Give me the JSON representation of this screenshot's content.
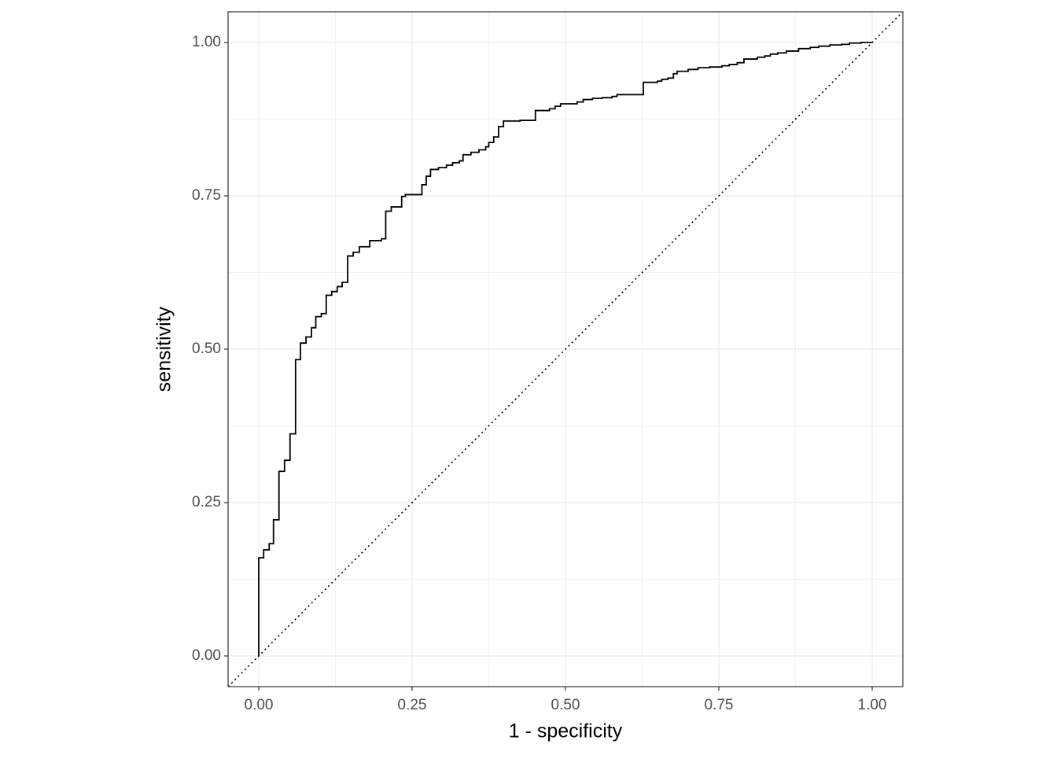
{
  "chart_data": {
    "type": "line",
    "step": "hv",
    "x_label": "1 - specificity",
    "y_label": "sensitivity",
    "x": [
      0,
      0,
      0.008,
      0.017,
      0.024,
      0.033,
      0.042,
      0.051,
      0.06,
      0.068,
      0.077,
      0.086,
      0.093,
      0.102,
      0.11,
      0.119,
      0.128,
      0.136,
      0.145,
      0.154,
      0.164,
      0.181,
      0.2,
      0.207,
      0.216,
      0.233,
      0.239,
      0.266,
      0.273,
      0.28,
      0.293,
      0.306,
      0.316,
      0.327,
      0.333,
      0.346,
      0.359,
      0.37,
      0.375,
      0.383,
      0.391,
      0.399,
      0.426,
      0.451,
      0.474,
      0.483,
      0.492,
      0.519,
      0.529,
      0.544,
      0.56,
      0.576,
      0.584,
      0.627,
      0.65,
      0.657,
      0.667,
      0.676,
      0.682,
      0.7,
      0.716,
      0.735,
      0.755,
      0.767,
      0.78,
      0.791,
      0.813,
      0.825,
      0.834,
      0.846,
      0.86,
      0.88,
      0.899,
      0.913,
      0.931,
      0.95,
      0.963,
      0.982,
      1
    ],
    "series": [
      {
        "color": "#000000",
        "values": [
          0,
          0.16,
          0.173,
          0.183,
          0.222,
          0.301,
          0.319,
          0.362,
          0.483,
          0.51,
          0.52,
          0.535,
          0.553,
          0.558,
          0.588,
          0.594,
          0.602,
          0.609,
          0.652,
          0.658,
          0.667,
          0.677,
          0.68,
          0.725,
          0.732,
          0.749,
          0.752,
          0.768,
          0.782,
          0.793,
          0.796,
          0.8,
          0.804,
          0.807,
          0.817,
          0.821,
          0.825,
          0.83,
          0.837,
          0.846,
          0.863,
          0.872,
          0.873,
          0.889,
          0.892,
          0.896,
          0.9,
          0.903,
          0.907,
          0.909,
          0.91,
          0.912,
          0.915,
          0.935,
          0.937,
          0.94,
          0.942,
          0.949,
          0.953,
          0.956,
          0.959,
          0.96,
          0.962,
          0.964,
          0.967,
          0.973,
          0.976,
          0.978,
          0.981,
          0.983,
          0.986,
          0.99,
          0.992,
          0.994,
          0.996,
          0.997,
          0.999,
          1,
          1
        ]
      }
    ],
    "xlim": [
      -0.05,
      1.05
    ],
    "ylim": [
      -0.05,
      1.05
    ],
    "xticks": [
      {
        "value": 0,
        "label": "0.00"
      },
      {
        "value": 0.25,
        "label": "0.25"
      },
      {
        "value": 0.5,
        "label": "0.50"
      },
      {
        "value": 0.75,
        "label": "0.75"
      },
      {
        "value": 1,
        "label": "1.00"
      }
    ],
    "yticks": [
      {
        "value": 0,
        "label": "0.00"
      },
      {
        "value": 0.25,
        "label": "0.25"
      },
      {
        "value": 0.5,
        "label": "0.50"
      },
      {
        "value": 0.75,
        "label": "0.75"
      },
      {
        "value": 1,
        "label": "1.00"
      }
    ],
    "grid": true,
    "minor_grid": true
  }
}
